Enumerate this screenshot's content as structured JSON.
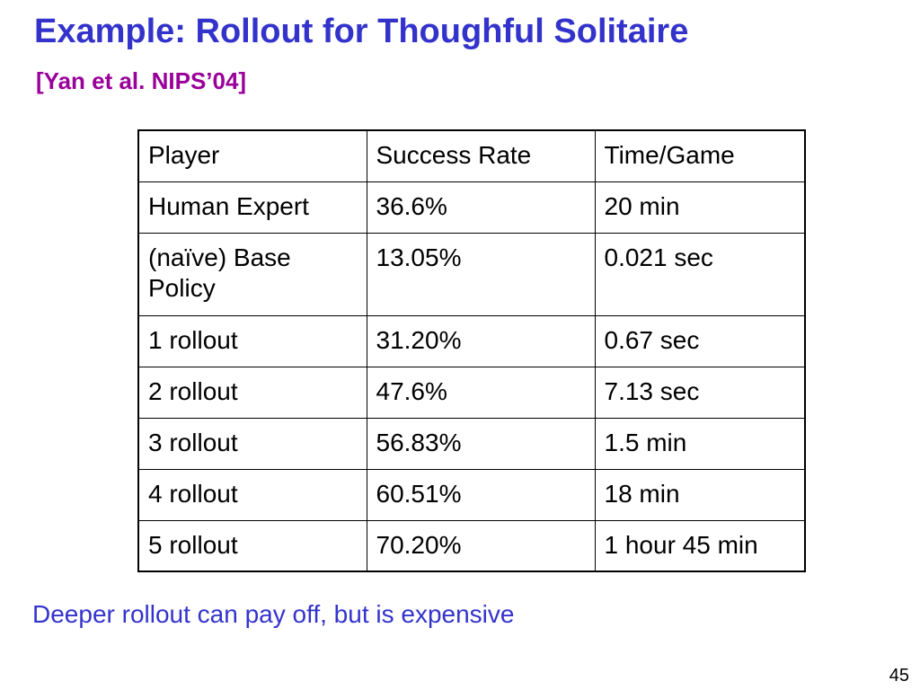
{
  "slide": {
    "title": "Example: Rollout for Thoughful Solitaire",
    "subtitle": "[Yan et al. NIPS’04]",
    "footnote": "Deeper rollout can pay off, but is expensive",
    "page_number": "45"
  },
  "table": {
    "headers": [
      "Player",
      "Success Rate",
      "Time/Game"
    ],
    "rows": [
      [
        "Human Expert",
        "36.6%",
        "20 min"
      ],
      [
        "(naïve) Base Policy",
        "13.05%",
        "0.021 sec"
      ],
      [
        "1 rollout",
        "31.20%",
        "0.67 sec"
      ],
      [
        "2 rollout",
        "47.6%",
        "7.13 sec"
      ],
      [
        "3 rollout",
        "56.83%",
        "1.5 min"
      ],
      [
        "4 rollout",
        "60.51%",
        "18 min"
      ],
      [
        "5 rollout",
        "70.20%",
        "1 hour 45 min"
      ]
    ]
  },
  "colors": {
    "title": "#3333cc",
    "subtitle": "#990099",
    "footnote": "#3333cc"
  }
}
